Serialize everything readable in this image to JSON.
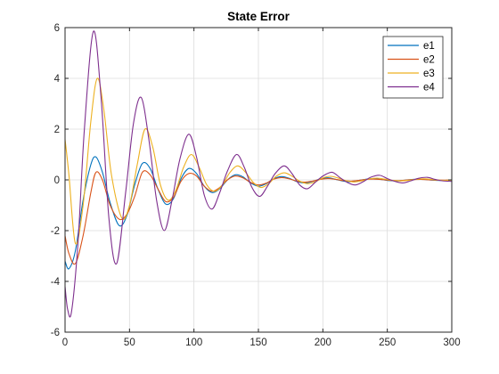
{
  "chart_data": {
    "type": "line",
    "title": "State Error",
    "xlabel": "",
    "ylabel": "",
    "xlim": [
      0,
      300
    ],
    "ylim": [
      -6,
      6
    ],
    "xticks": [
      "0",
      "50",
      "100",
      "150",
      "200",
      "250",
      "300"
    ],
    "yticks": [
      "-6",
      "-4",
      "-2",
      "0",
      "2",
      "4",
      "6"
    ],
    "grid": true,
    "legend_position": "top-right",
    "series": [
      {
        "name": "e1",
        "color": "#0072BD",
        "x": [
          0,
          3,
          8,
          14,
          20,
          24,
          29,
          35,
          42,
          48,
          54,
          60,
          66,
          72,
          78,
          84,
          90,
          96,
          102,
          108,
          114,
          120,
          126,
          132,
          138,
          144,
          150,
          156,
          162,
          168,
          174,
          180,
          186,
          192,
          198,
          204,
          210,
          216,
          222,
          228,
          234,
          240,
          246,
          252,
          258,
          264,
          270,
          276,
          282,
          288,
          294,
          300
        ],
        "y": [
          -3.2,
          -3.5,
          -2.8,
          -0.8,
          0.6,
          0.9,
          0.3,
          -0.9,
          -1.8,
          -1.4,
          -0.2,
          0.65,
          0.45,
          -0.35,
          -0.95,
          -0.75,
          0.05,
          0.45,
          0.25,
          -0.25,
          -0.5,
          -0.35,
          0.0,
          0.2,
          0.12,
          -0.12,
          -0.25,
          -0.15,
          0.05,
          0.13,
          0.06,
          -0.07,
          -0.12,
          -0.06,
          0.04,
          0.08,
          0.02,
          -0.05,
          -0.07,
          -0.02,
          0.03,
          0.05,
          0.01,
          -0.03,
          -0.04,
          -0.01,
          0.02,
          0.03,
          0.0,
          -0.02,
          -0.02,
          0.0
        ]
      },
      {
        "name": "e2",
        "color": "#D95319",
        "x": [
          0,
          3,
          8,
          14,
          20,
          24,
          29,
          35,
          42,
          48,
          54,
          60,
          66,
          72,
          78,
          84,
          90,
          96,
          102,
          108,
          114,
          120,
          126,
          132,
          138,
          144,
          150,
          156,
          162,
          168,
          174,
          180,
          186,
          192,
          198,
          204,
          210,
          216,
          222,
          228,
          234,
          240,
          246,
          252,
          258,
          264,
          270,
          276,
          282,
          288,
          294,
          300
        ],
        "y": [
          -2.2,
          -2.9,
          -3.3,
          -2.2,
          -0.5,
          0.3,
          0.0,
          -1.0,
          -1.55,
          -1.35,
          -0.65,
          0.3,
          0.2,
          -0.35,
          -0.85,
          -0.7,
          -0.05,
          0.25,
          0.15,
          -0.25,
          -0.45,
          -0.3,
          0.0,
          0.15,
          0.08,
          -0.1,
          -0.2,
          -0.13,
          0.03,
          0.09,
          0.04,
          -0.05,
          -0.09,
          -0.05,
          0.02,
          0.05,
          0.02,
          -0.03,
          -0.05,
          -0.02,
          0.02,
          0.03,
          0.01,
          -0.02,
          -0.03,
          -0.01,
          0.01,
          0.02,
          0.0,
          -0.01,
          -0.01,
          0.0
        ]
      },
      {
        "name": "e3",
        "color": "#EDB120",
        "x": [
          0,
          3,
          8,
          14,
          20,
          25,
          30,
          36,
          44,
          50,
          56,
          62,
          68,
          74,
          80,
          86,
          92,
          98,
          104,
          110,
          116,
          122,
          128,
          134,
          140,
          146,
          152,
          158,
          164,
          170,
          176,
          182,
          188,
          194,
          200,
          206,
          212,
          218,
          224,
          230,
          236,
          242,
          248,
          254,
          260,
          266,
          272,
          278,
          284,
          290,
          296,
          300
        ],
        "y": [
          1.6,
          0.2,
          -2.5,
          -1.0,
          2.3,
          4.0,
          2.8,
          0.2,
          -1.5,
          -1.0,
          0.6,
          2.0,
          1.3,
          -0.2,
          -0.8,
          -0.4,
          0.5,
          1.0,
          0.5,
          -0.2,
          -0.45,
          -0.2,
          0.3,
          0.55,
          0.3,
          -0.1,
          -0.3,
          -0.15,
          0.15,
          0.28,
          0.15,
          -0.05,
          -0.15,
          -0.08,
          0.08,
          0.14,
          0.07,
          -0.03,
          -0.08,
          -0.04,
          0.04,
          0.07,
          0.03,
          -0.02,
          -0.04,
          -0.02,
          0.02,
          0.04,
          0.02,
          -0.01,
          -0.02,
          -0.01
        ]
      },
      {
        "name": "e4",
        "color": "#7E2F8E",
        "x": [
          0,
          2,
          5,
          10,
          15,
          22,
          28,
          34,
          40,
          47,
          53,
          59,
          65,
          71,
          77,
          83,
          89,
          96,
          102,
          108,
          114,
          120,
          126,
          133,
          139,
          145,
          151,
          157,
          163,
          170,
          176,
          182,
          188,
          194,
          200,
          207,
          213,
          219,
          225,
          231,
          237,
          244,
          250,
          256,
          262,
          268,
          274,
          281,
          287,
          293,
          300
        ],
        "y": [
          -4.2,
          -5.1,
          -5.2,
          -2.5,
          2.0,
          5.85,
          3.2,
          -1.5,
          -3.3,
          -0.5,
          2.2,
          3.25,
          1.6,
          -0.8,
          -2.0,
          -0.8,
          0.8,
          1.8,
          0.9,
          -0.6,
          -1.15,
          -0.5,
          0.35,
          1.0,
          0.5,
          -0.3,
          -0.65,
          -0.25,
          0.25,
          0.55,
          0.25,
          -0.2,
          -0.35,
          -0.1,
          0.15,
          0.3,
          0.1,
          -0.1,
          -0.2,
          -0.08,
          0.1,
          0.18,
          0.05,
          -0.06,
          -0.12,
          -0.04,
          0.06,
          0.1,
          0.02,
          -0.04,
          -0.06
        ]
      }
    ]
  }
}
